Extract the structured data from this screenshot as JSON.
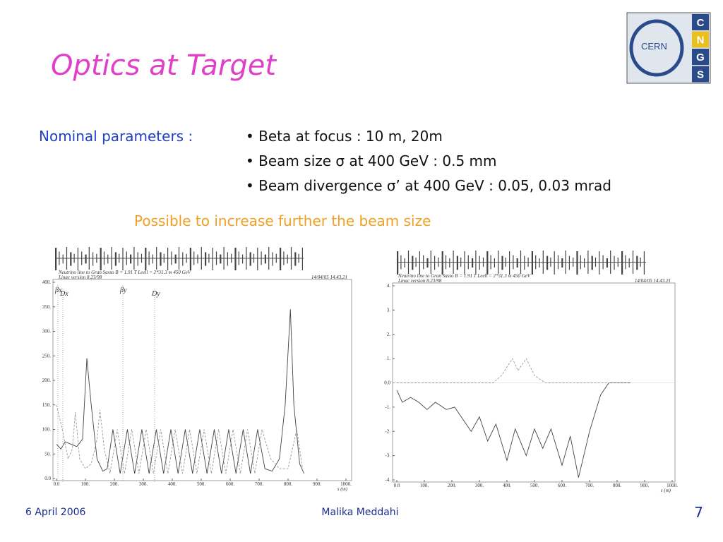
{
  "slide": {
    "title": "Optics at Target",
    "logo": {
      "text": "CERN",
      "letters": [
        "C",
        "N",
        "G",
        "S"
      ]
    },
    "params_label": "Nominal parameters :",
    "bullets": [
      "• Beta at focus : 10 m, 20m",
      "• Beam size σ  at 400 GeV : 0.5 mm",
      "• Beam divergence σ’ at 400 GeV : 0.05, 0.03 mrad"
    ],
    "note": "Possible to increase further the beam size",
    "footer": {
      "date": "6 April 2006",
      "author": "Malika Meddahi",
      "page": "7"
    }
  },
  "plots": [
    {
      "type": "line",
      "header": "Neutrino line to Gran Sasso B = 1.91 T Leell = 2*31.3 m  450 GeV",
      "subheader": "Linac version 8.23/98",
      "timestamp": "14/04/05  14.43.21",
      "x_label": "s (m)",
      "xlim": [
        0,
        1000
      ],
      "ylim": [
        0,
        400
      ],
      "xticks": [
        {
          "value": 0,
          "label": "0.0"
        },
        {
          "value": 100,
          "label": "100."
        },
        {
          "value": 200,
          "label": "200."
        },
        {
          "value": 300,
          "label": "300."
        },
        {
          "value": 400,
          "label": "400."
        },
        {
          "value": 500,
          "label": "500."
        },
        {
          "value": 600,
          "label": "600."
        },
        {
          "value": 700,
          "label": "700."
        },
        {
          "value": 800,
          "label": "800."
        },
        {
          "value": 900,
          "label": "900."
        },
        {
          "value": 1000,
          "label": "1000."
        }
      ],
      "yticks": [
        {
          "value": 0,
          "label": "0.0"
        },
        {
          "value": 50,
          "label": "50."
        },
        {
          "value": 100,
          "label": "100."
        },
        {
          "value": 150,
          "label": "150."
        },
        {
          "value": 200,
          "label": "200."
        },
        {
          "value": 250,
          "label": "250."
        },
        {
          "value": 300,
          "label": "300."
        },
        {
          "value": 350,
          "label": "350."
        },
        {
          "value": 400,
          "label": "400."
        }
      ],
      "series": [
        {
          "name": "βx",
          "color": "#444444",
          "dashed": false,
          "x": [
            0,
            15,
            30,
            50,
            70,
            90,
            105,
            120,
            140,
            160,
            175,
            195,
            220,
            245,
            270,
            295,
            320,
            345,
            370,
            395,
            420,
            445,
            470,
            495,
            520,
            545,
            570,
            595,
            620,
            645,
            670,
            695,
            720,
            745,
            770,
            790,
            808,
            820,
            840,
            855
          ],
          "values": [
            70,
            60,
            75,
            70,
            65,
            80,
            245,
            150,
            40,
            15,
            20,
            100,
            10,
            100,
            10,
            100,
            10,
            100,
            10,
            100,
            10,
            100,
            10,
            100,
            10,
            100,
            10,
            100,
            10,
            100,
            10,
            100,
            20,
            15,
            40,
            150,
            345,
            150,
            30,
            10
          ]
        },
        {
          "name": "βy",
          "color": "#999999",
          "dashed": true,
          "x": [
            0,
            20,
            40,
            55,
            65,
            80,
            100,
            120,
            140,
            150,
            165,
            185,
            210,
            235,
            260,
            285,
            310,
            335,
            360,
            385,
            410,
            435,
            460,
            485,
            510,
            535,
            560,
            585,
            610,
            635,
            660,
            685,
            710,
            740,
            770,
            800,
            830,
            850
          ],
          "values": [
            150,
            100,
            40,
            60,
            135,
            40,
            20,
            30,
            80,
            140,
            60,
            10,
            100,
            10,
            100,
            10,
            100,
            10,
            100,
            10,
            100,
            10,
            100,
            10,
            100,
            10,
            100,
            10,
            100,
            10,
            100,
            10,
            100,
            40,
            20,
            20,
            100,
            20
          ]
        }
      ]
    },
    {
      "type": "line",
      "header": "Neutrino line to Gran Sasso B = 1.91 T Leell = 2*31.3 m  450 GeV",
      "subheader": "Linac version 8.23/98",
      "timestamp": "14/04/05  14.43.21",
      "x_label": "s (m)",
      "xlim": [
        0,
        1000
      ],
      "ylim": [
        -4,
        4
      ],
      "xticks": [
        {
          "value": 0,
          "label": "0.0"
        },
        {
          "value": 100,
          "label": "100."
        },
        {
          "value": 200,
          "label": "200."
        },
        {
          "value": 300,
          "label": "300."
        },
        {
          "value": 400,
          "label": "400."
        },
        {
          "value": 500,
          "label": "500."
        },
        {
          "value": 600,
          "label": "600."
        },
        {
          "value": 700,
          "label": "700."
        },
        {
          "value": 800,
          "label": "800."
        },
        {
          "value": 900,
          "label": "900."
        },
        {
          "value": 1000,
          "label": "1000."
        }
      ],
      "yticks": [
        {
          "value": -4,
          "label": "-4."
        },
        {
          "value": -3,
          "label": "-3."
        },
        {
          "value": -2,
          "label": "-2."
        },
        {
          "value": -1,
          "label": "-1."
        },
        {
          "value": 0,
          "label": "0.0"
        },
        {
          "value": 1,
          "label": "1."
        },
        {
          "value": 2,
          "label": "2."
        },
        {
          "value": 3,
          "label": "3."
        },
        {
          "value": 4,
          "label": "4."
        }
      ],
      "series": [
        {
          "name": "Dx",
          "color": "#444444",
          "dashed": false,
          "x": [
            0,
            20,
            50,
            80,
            110,
            140,
            180,
            210,
            240,
            270,
            300,
            330,
            360,
            400,
            430,
            470,
            500,
            530,
            560,
            600,
            630,
            660,
            700,
            740,
            770,
            850
          ],
          "values": [
            -0.3,
            -0.8,
            -0.6,
            -0.8,
            -1.1,
            -0.8,
            -1.1,
            -1.0,
            -1.5,
            -2.0,
            -1.4,
            -2.4,
            -1.7,
            -3.2,
            -1.9,
            -3.0,
            -1.9,
            -2.7,
            -1.9,
            -3.4,
            -2.2,
            -3.9,
            -2.0,
            -0.5,
            0,
            0
          ]
        },
        {
          "name": "Dy",
          "color": "#999999",
          "dashed": true,
          "x": [
            0,
            350,
            380,
            420,
            440,
            470,
            500,
            540,
            850
          ],
          "values": [
            0,
            0,
            0.3,
            1.0,
            0.5,
            1.0,
            0.3,
            0,
            0
          ]
        }
      ]
    }
  ]
}
